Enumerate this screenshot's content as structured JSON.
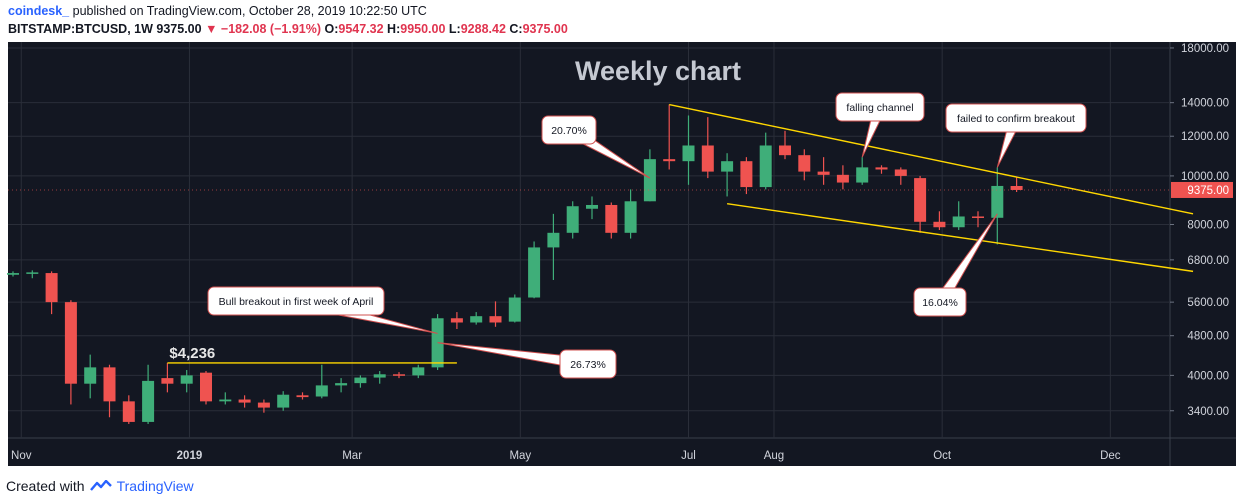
{
  "header": {
    "publisher": "coindesk_",
    "published_text": "published on TradingView.com, October 28, 2019 10:22:50 UTC",
    "symbol": "BITSTAMP:BTCUSD, 1W",
    "last": "9375.00",
    "change": "−182.08 (−1.91%)",
    "o_label": "O:",
    "o_value": "9547.32",
    "h_label": "H:",
    "h_value": "9950.00",
    "l_label": "L:",
    "l_value": "9288.42",
    "c_label": "C:",
    "c_value": "9375.00"
  },
  "footer": {
    "created_with": "Created with",
    "brand": "TradingView"
  },
  "colors": {
    "background": "#131722",
    "up": "#26a69a",
    "up_fill": "#3cb371",
    "down": "#ef5350",
    "trendline": "#ffd700",
    "price_tag": "#ef5350",
    "grid": "#2a2e39"
  },
  "chart_data": {
    "type": "candlestick",
    "title": "Weekly chart",
    "y_scale": "log",
    "ylim": [
      3000,
      18500
    ],
    "y_ticks": [
      "18000.00",
      "14000.00",
      "12000.00",
      "10000.00",
      "8000.00",
      "6800.00",
      "5600.00",
      "4800.00",
      "4000.00",
      "3400.00"
    ],
    "x_ticks": [
      "Nov",
      "2019",
      "Mar",
      "May",
      "Jul",
      "Aug",
      "Oct",
      "Dec"
    ],
    "last_price_label": "9375.00",
    "candles": [
      {
        "week": "2018-10-29",
        "o": 6350,
        "h": 6450,
        "l": 6300,
        "c": 6400
      },
      {
        "week": "2018-11-05",
        "o": 6390,
        "h": 6480,
        "l": 6250,
        "c": 6420
      },
      {
        "week": "2018-11-12",
        "o": 6400,
        "h": 6450,
        "l": 5300,
        "c": 5600
      },
      {
        "week": "2018-11-19",
        "o": 5600,
        "h": 5650,
        "l": 3500,
        "c": 3850
      },
      {
        "week": "2018-11-26",
        "o": 3850,
        "h": 4400,
        "l": 3600,
        "c": 4150
      },
      {
        "week": "2018-12-03",
        "o": 4150,
        "h": 4200,
        "l": 3300,
        "c": 3550
      },
      {
        "week": "2018-12-10",
        "o": 3550,
        "h": 3650,
        "l": 3200,
        "c": 3230
      },
      {
        "week": "2018-12-17",
        "o": 3230,
        "h": 4200,
        "l": 3200,
        "c": 3900
      },
      {
        "week": "2018-12-24",
        "o": 3950,
        "h": 4236,
        "l": 3700,
        "c": 3850
      },
      {
        "week": "2018-12-31",
        "o": 3850,
        "h": 4100,
        "l": 3700,
        "c": 4000
      },
      {
        "week": "2019-01-07",
        "o": 4050,
        "h": 4080,
        "l": 3500,
        "c": 3550
      },
      {
        "week": "2019-01-14",
        "o": 3550,
        "h": 3700,
        "l": 3500,
        "c": 3580
      },
      {
        "week": "2019-01-21",
        "o": 3580,
        "h": 3650,
        "l": 3450,
        "c": 3530
      },
      {
        "week": "2019-01-28",
        "o": 3530,
        "h": 3580,
        "l": 3370,
        "c": 3450
      },
      {
        "week": "2019-02-04",
        "o": 3450,
        "h": 3720,
        "l": 3400,
        "c": 3660
      },
      {
        "week": "2019-02-11",
        "o": 3650,
        "h": 3700,
        "l": 3580,
        "c": 3620
      },
      {
        "week": "2019-02-18",
        "o": 3630,
        "h": 4200,
        "l": 3600,
        "c": 3820
      },
      {
        "week": "2019-02-25",
        "o": 3820,
        "h": 3950,
        "l": 3700,
        "c": 3860
      },
      {
        "week": "2019-03-04",
        "o": 3860,
        "h": 4000,
        "l": 3780,
        "c": 3960
      },
      {
        "week": "2019-03-11",
        "o": 3960,
        "h": 4080,
        "l": 3850,
        "c": 4020
      },
      {
        "week": "2019-03-18",
        "o": 4020,
        "h": 4060,
        "l": 3950,
        "c": 4000
      },
      {
        "week": "2019-03-25",
        "o": 4000,
        "h": 4200,
        "l": 3950,
        "c": 4150
      },
      {
        "week": "2019-04-01",
        "o": 4150,
        "h": 5300,
        "l": 4100,
        "c": 5200
      },
      {
        "week": "2019-04-08",
        "o": 5200,
        "h": 5350,
        "l": 4950,
        "c": 5100
      },
      {
        "week": "2019-04-15",
        "o": 5100,
        "h": 5350,
        "l": 5050,
        "c": 5250
      },
      {
        "week": "2019-04-22",
        "o": 5250,
        "h": 5620,
        "l": 5000,
        "c": 5100
      },
      {
        "week": "2019-04-29",
        "o": 5120,
        "h": 5800,
        "l": 5100,
        "c": 5720
      },
      {
        "week": "2019-05-06",
        "o": 5720,
        "h": 7400,
        "l": 5700,
        "c": 7200
      },
      {
        "week": "2019-05-13",
        "o": 7200,
        "h": 8400,
        "l": 6200,
        "c": 7700
      },
      {
        "week": "2019-05-20",
        "o": 7700,
        "h": 8900,
        "l": 7500,
        "c": 8700
      },
      {
        "week": "2019-05-27",
        "o": 8600,
        "h": 9100,
        "l": 8200,
        "c": 8750
      },
      {
        "week": "2019-06-03",
        "o": 8750,
        "h": 8850,
        "l": 7500,
        "c": 7700
      },
      {
        "week": "2019-06-10",
        "o": 7700,
        "h": 9400,
        "l": 7500,
        "c": 8900
      },
      {
        "week": "2019-06-17",
        "o": 8900,
        "h": 11300,
        "l": 8900,
        "c": 10800
      },
      {
        "week": "2019-06-24",
        "o": 10800,
        "h": 13880,
        "l": 10300,
        "c": 10700
      },
      {
        "week": "2019-07-01",
        "o": 10700,
        "h": 13200,
        "l": 9600,
        "c": 11500
      },
      {
        "week": "2019-07-08",
        "o": 11500,
        "h": 13100,
        "l": 9900,
        "c": 10200
      },
      {
        "week": "2019-07-15",
        "o": 10200,
        "h": 11100,
        "l": 9100,
        "c": 10700
      },
      {
        "week": "2019-07-22",
        "o": 10700,
        "h": 10900,
        "l": 9200,
        "c": 9500
      },
      {
        "week": "2019-07-29",
        "o": 9500,
        "h": 12200,
        "l": 9400,
        "c": 11500
      },
      {
        "week": "2019-08-05",
        "o": 11500,
        "h": 12300,
        "l": 10800,
        "c": 11000
      },
      {
        "week": "2019-08-12",
        "o": 11000,
        "h": 11300,
        "l": 9800,
        "c": 10200
      },
      {
        "week": "2019-08-19",
        "o": 10200,
        "h": 10900,
        "l": 9600,
        "c": 10050
      },
      {
        "week": "2019-08-26",
        "o": 10050,
        "h": 10500,
        "l": 9400,
        "c": 9700
      },
      {
        "week": "2019-09-02",
        "o": 9700,
        "h": 10900,
        "l": 9600,
        "c": 10400
      },
      {
        "week": "2019-09-09",
        "o": 10400,
        "h": 10500,
        "l": 10100,
        "c": 10300
      },
      {
        "week": "2019-09-16",
        "o": 10300,
        "h": 10400,
        "l": 9600,
        "c": 10000
      },
      {
        "week": "2019-09-23",
        "o": 9900,
        "h": 10000,
        "l": 7700,
        "c": 8100
      },
      {
        "week": "2019-09-30",
        "o": 8100,
        "h": 8500,
        "l": 7800,
        "c": 7900
      },
      {
        "week": "2019-10-07",
        "o": 7900,
        "h": 8900,
        "l": 7800,
        "c": 8300
      },
      {
        "week": "2019-10-14",
        "o": 8300,
        "h": 8500,
        "l": 7900,
        "c": 8250
      },
      {
        "week": "2019-10-21",
        "o": 8250,
        "h": 10400,
        "l": 7300,
        "c": 9550
      },
      {
        "week": "2019-10-28",
        "o": 9547.32,
        "h": 9950,
        "l": 9288.42,
        "c": 9375
      }
    ],
    "lines": [
      {
        "name": "resistance",
        "from": {
          "week": "2018-12-24",
          "price": 4236
        },
        "to": {
          "week": "2019-04-08",
          "price": 4236
        }
      },
      {
        "name": "falling-channel-upper",
        "from": {
          "week": "2019-06-24",
          "price": 13880
        },
        "to": {
          "week": "2019-12-31",
          "price": 8400
        }
      },
      {
        "name": "falling-channel-lower",
        "from": {
          "week": "2019-07-15",
          "price": 8800
        },
        "to": {
          "week": "2019-12-31",
          "price": 6450
        }
      }
    ],
    "annotations": [
      {
        "text": "$4,236",
        "type": "label",
        "week": "2018-12-24",
        "price": 4236
      },
      {
        "text": "Bull breakout in first week of April",
        "type": "callout",
        "target_week": "2019-04-01",
        "target_price": 4850
      },
      {
        "text": "26.73%",
        "type": "callout",
        "target_week": "2019-04-01",
        "target_price": 4650
      },
      {
        "text": "20.70%",
        "type": "callout",
        "target_week": "2019-06-17",
        "target_price": 9900
      },
      {
        "text": "falling channel",
        "type": "callout",
        "target_week": "2019-09-02",
        "target_price": 10900
      },
      {
        "text": "failed to confirm breakout",
        "type": "callout",
        "target_week": "2019-10-21",
        "target_price": 10400
      },
      {
        "text": "16.04%",
        "type": "callout",
        "target_week": "2019-10-21",
        "target_price": 8400
      }
    ]
  }
}
